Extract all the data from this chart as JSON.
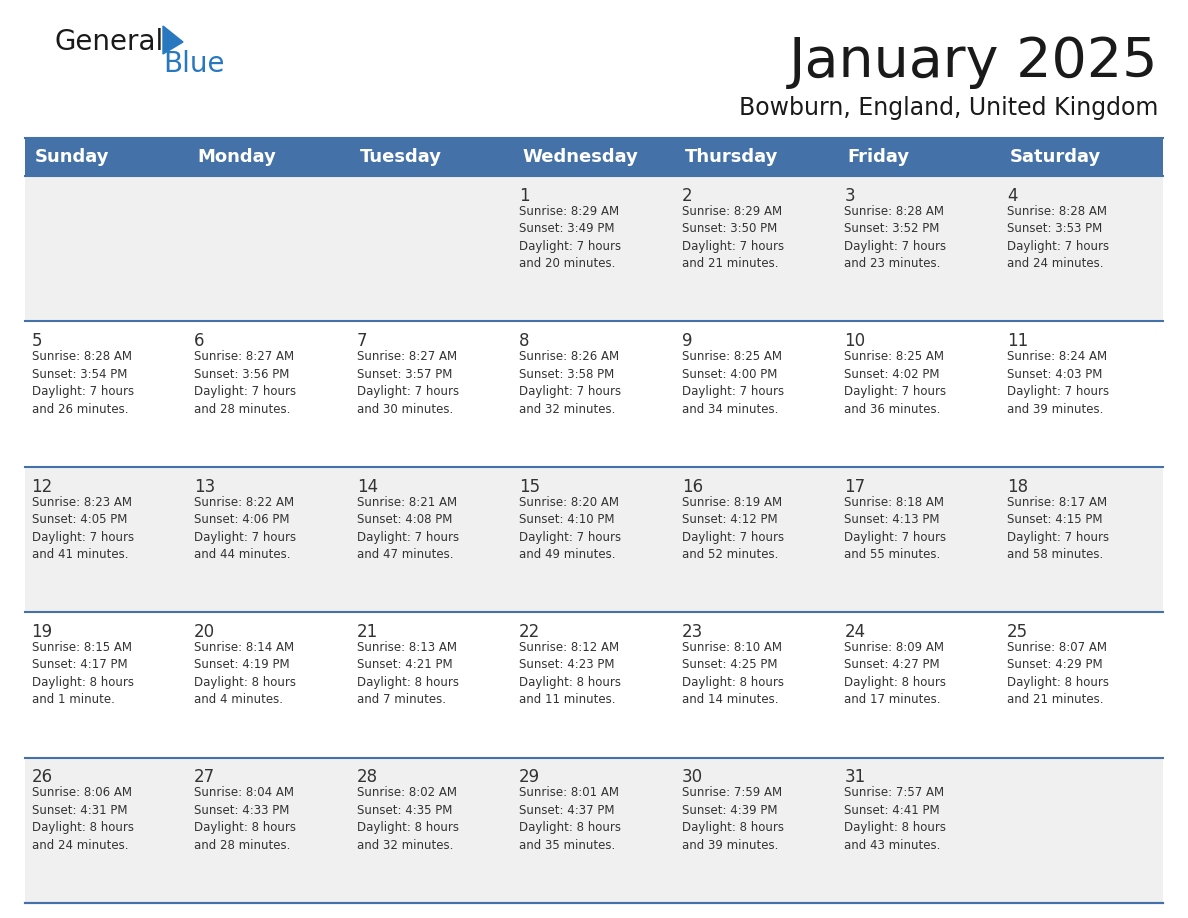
{
  "title": "January 2025",
  "subtitle": "Bowburn, England, United Kingdom",
  "days_of_week": [
    "Sunday",
    "Monday",
    "Tuesday",
    "Wednesday",
    "Thursday",
    "Friday",
    "Saturday"
  ],
  "header_bg": "#4472a8",
  "header_text": "#ffffff",
  "cell_bg_odd": "#f0f0f0",
  "cell_bg_even": "#ffffff",
  "row_separator": "#4472a8",
  "text_color": "#333333",
  "title_color": "#1a1a1a",
  "logo_color1": "#1a1a1a",
  "logo_color2": "#2878c0",
  "logo_triangle": "#2878c0",
  "calendar_data": [
    [
      {
        "day": "",
        "info": ""
      },
      {
        "day": "",
        "info": ""
      },
      {
        "day": "",
        "info": ""
      },
      {
        "day": "1",
        "info": "Sunrise: 8:29 AM\nSunset: 3:49 PM\nDaylight: 7 hours\nand 20 minutes."
      },
      {
        "day": "2",
        "info": "Sunrise: 8:29 AM\nSunset: 3:50 PM\nDaylight: 7 hours\nand 21 minutes."
      },
      {
        "day": "3",
        "info": "Sunrise: 8:28 AM\nSunset: 3:52 PM\nDaylight: 7 hours\nand 23 minutes."
      },
      {
        "day": "4",
        "info": "Sunrise: 8:28 AM\nSunset: 3:53 PM\nDaylight: 7 hours\nand 24 minutes."
      }
    ],
    [
      {
        "day": "5",
        "info": "Sunrise: 8:28 AM\nSunset: 3:54 PM\nDaylight: 7 hours\nand 26 minutes."
      },
      {
        "day": "6",
        "info": "Sunrise: 8:27 AM\nSunset: 3:56 PM\nDaylight: 7 hours\nand 28 minutes."
      },
      {
        "day": "7",
        "info": "Sunrise: 8:27 AM\nSunset: 3:57 PM\nDaylight: 7 hours\nand 30 minutes."
      },
      {
        "day": "8",
        "info": "Sunrise: 8:26 AM\nSunset: 3:58 PM\nDaylight: 7 hours\nand 32 minutes."
      },
      {
        "day": "9",
        "info": "Sunrise: 8:25 AM\nSunset: 4:00 PM\nDaylight: 7 hours\nand 34 minutes."
      },
      {
        "day": "10",
        "info": "Sunrise: 8:25 AM\nSunset: 4:02 PM\nDaylight: 7 hours\nand 36 minutes."
      },
      {
        "day": "11",
        "info": "Sunrise: 8:24 AM\nSunset: 4:03 PM\nDaylight: 7 hours\nand 39 minutes."
      }
    ],
    [
      {
        "day": "12",
        "info": "Sunrise: 8:23 AM\nSunset: 4:05 PM\nDaylight: 7 hours\nand 41 minutes."
      },
      {
        "day": "13",
        "info": "Sunrise: 8:22 AM\nSunset: 4:06 PM\nDaylight: 7 hours\nand 44 minutes."
      },
      {
        "day": "14",
        "info": "Sunrise: 8:21 AM\nSunset: 4:08 PM\nDaylight: 7 hours\nand 47 minutes."
      },
      {
        "day": "15",
        "info": "Sunrise: 8:20 AM\nSunset: 4:10 PM\nDaylight: 7 hours\nand 49 minutes."
      },
      {
        "day": "16",
        "info": "Sunrise: 8:19 AM\nSunset: 4:12 PM\nDaylight: 7 hours\nand 52 minutes."
      },
      {
        "day": "17",
        "info": "Sunrise: 8:18 AM\nSunset: 4:13 PM\nDaylight: 7 hours\nand 55 minutes."
      },
      {
        "day": "18",
        "info": "Sunrise: 8:17 AM\nSunset: 4:15 PM\nDaylight: 7 hours\nand 58 minutes."
      }
    ],
    [
      {
        "day": "19",
        "info": "Sunrise: 8:15 AM\nSunset: 4:17 PM\nDaylight: 8 hours\nand 1 minute."
      },
      {
        "day": "20",
        "info": "Sunrise: 8:14 AM\nSunset: 4:19 PM\nDaylight: 8 hours\nand 4 minutes."
      },
      {
        "day": "21",
        "info": "Sunrise: 8:13 AM\nSunset: 4:21 PM\nDaylight: 8 hours\nand 7 minutes."
      },
      {
        "day": "22",
        "info": "Sunrise: 8:12 AM\nSunset: 4:23 PM\nDaylight: 8 hours\nand 11 minutes."
      },
      {
        "day": "23",
        "info": "Sunrise: 8:10 AM\nSunset: 4:25 PM\nDaylight: 8 hours\nand 14 minutes."
      },
      {
        "day": "24",
        "info": "Sunrise: 8:09 AM\nSunset: 4:27 PM\nDaylight: 8 hours\nand 17 minutes."
      },
      {
        "day": "25",
        "info": "Sunrise: 8:07 AM\nSunset: 4:29 PM\nDaylight: 8 hours\nand 21 minutes."
      }
    ],
    [
      {
        "day": "26",
        "info": "Sunrise: 8:06 AM\nSunset: 4:31 PM\nDaylight: 8 hours\nand 24 minutes."
      },
      {
        "day": "27",
        "info": "Sunrise: 8:04 AM\nSunset: 4:33 PM\nDaylight: 8 hours\nand 28 minutes."
      },
      {
        "day": "28",
        "info": "Sunrise: 8:02 AM\nSunset: 4:35 PM\nDaylight: 8 hours\nand 32 minutes."
      },
      {
        "day": "29",
        "info": "Sunrise: 8:01 AM\nSunset: 4:37 PM\nDaylight: 8 hours\nand 35 minutes."
      },
      {
        "day": "30",
        "info": "Sunrise: 7:59 AM\nSunset: 4:39 PM\nDaylight: 8 hours\nand 39 minutes."
      },
      {
        "day": "31",
        "info": "Sunrise: 7:57 AM\nSunset: 4:41 PM\nDaylight: 8 hours\nand 43 minutes."
      },
      {
        "day": "",
        "info": ""
      }
    ]
  ]
}
